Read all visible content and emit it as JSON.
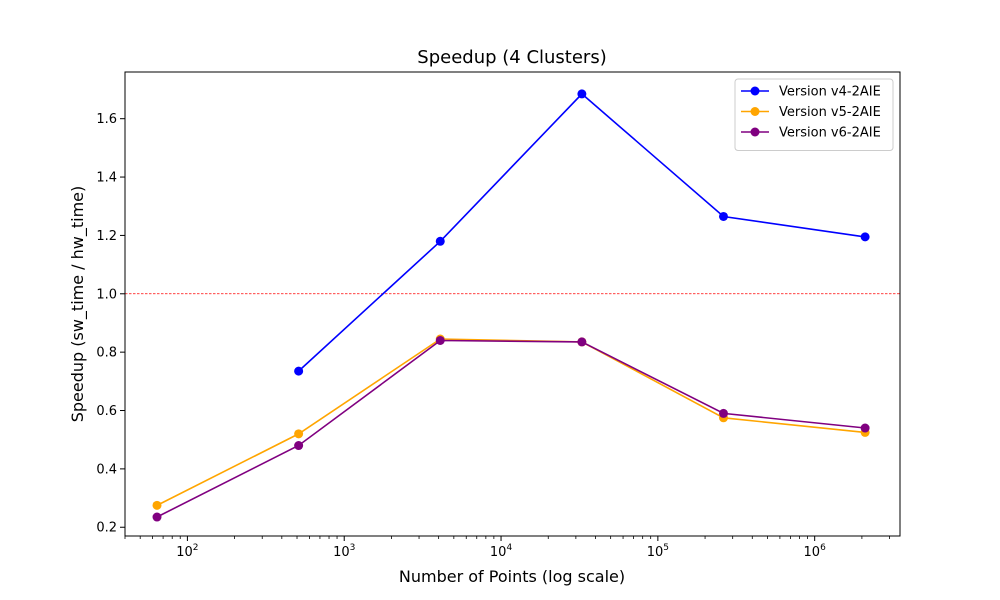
{
  "chart_data": {
    "type": "line",
    "title": "Speedup (4 Clusters)",
    "xlabel": "Number of Points (log scale)",
    "ylabel": "Speedup (sw_time / hw_time)",
    "xscale": "log",
    "xlim": [
      40,
      3500000
    ],
    "ylim": [
      0.17,
      1.76
    ],
    "xticks": [
      {
        "value": 100,
        "label": "10",
        "exp": "2"
      },
      {
        "value": 1000,
        "label": "10",
        "exp": "3"
      },
      {
        "value": 10000,
        "label": "10",
        "exp": "4"
      },
      {
        "value": 100000,
        "label": "10",
        "exp": "5"
      },
      {
        "value": 1000000,
        "label": "10",
        "exp": "6"
      }
    ],
    "yticks": [
      0.2,
      0.4,
      0.6,
      0.8,
      1.0,
      1.2,
      1.4,
      1.6
    ],
    "ytick_labels": [
      "0.2",
      "0.4",
      "0.6",
      "0.8",
      "1.0",
      "1.2",
      "1.4",
      "1.6"
    ],
    "reference_line": {
      "y": 1.0,
      "color": "#ff0000",
      "style": "dashed"
    },
    "legend_position": "top-right",
    "grid": false,
    "series": [
      {
        "name": "Version v4-2AIE",
        "color": "#0000ff",
        "x": [
          512,
          4096,
          32768,
          262144,
          2097152
        ],
        "y": [
          0.735,
          1.18,
          1.685,
          1.265,
          1.195
        ]
      },
      {
        "name": "Version v5-2AIE",
        "color": "#ffa500",
        "x": [
          64,
          512,
          4096,
          32768,
          262144,
          2097152
        ],
        "y": [
          0.275,
          0.52,
          0.845,
          0.835,
          0.575,
          0.525
        ]
      },
      {
        "name": "Version v6-2AIE",
        "color": "#800080",
        "x": [
          64,
          512,
          4096,
          32768,
          262144,
          2097152
        ],
        "y": [
          0.235,
          0.48,
          0.84,
          0.835,
          0.59,
          0.54
        ]
      }
    ]
  }
}
